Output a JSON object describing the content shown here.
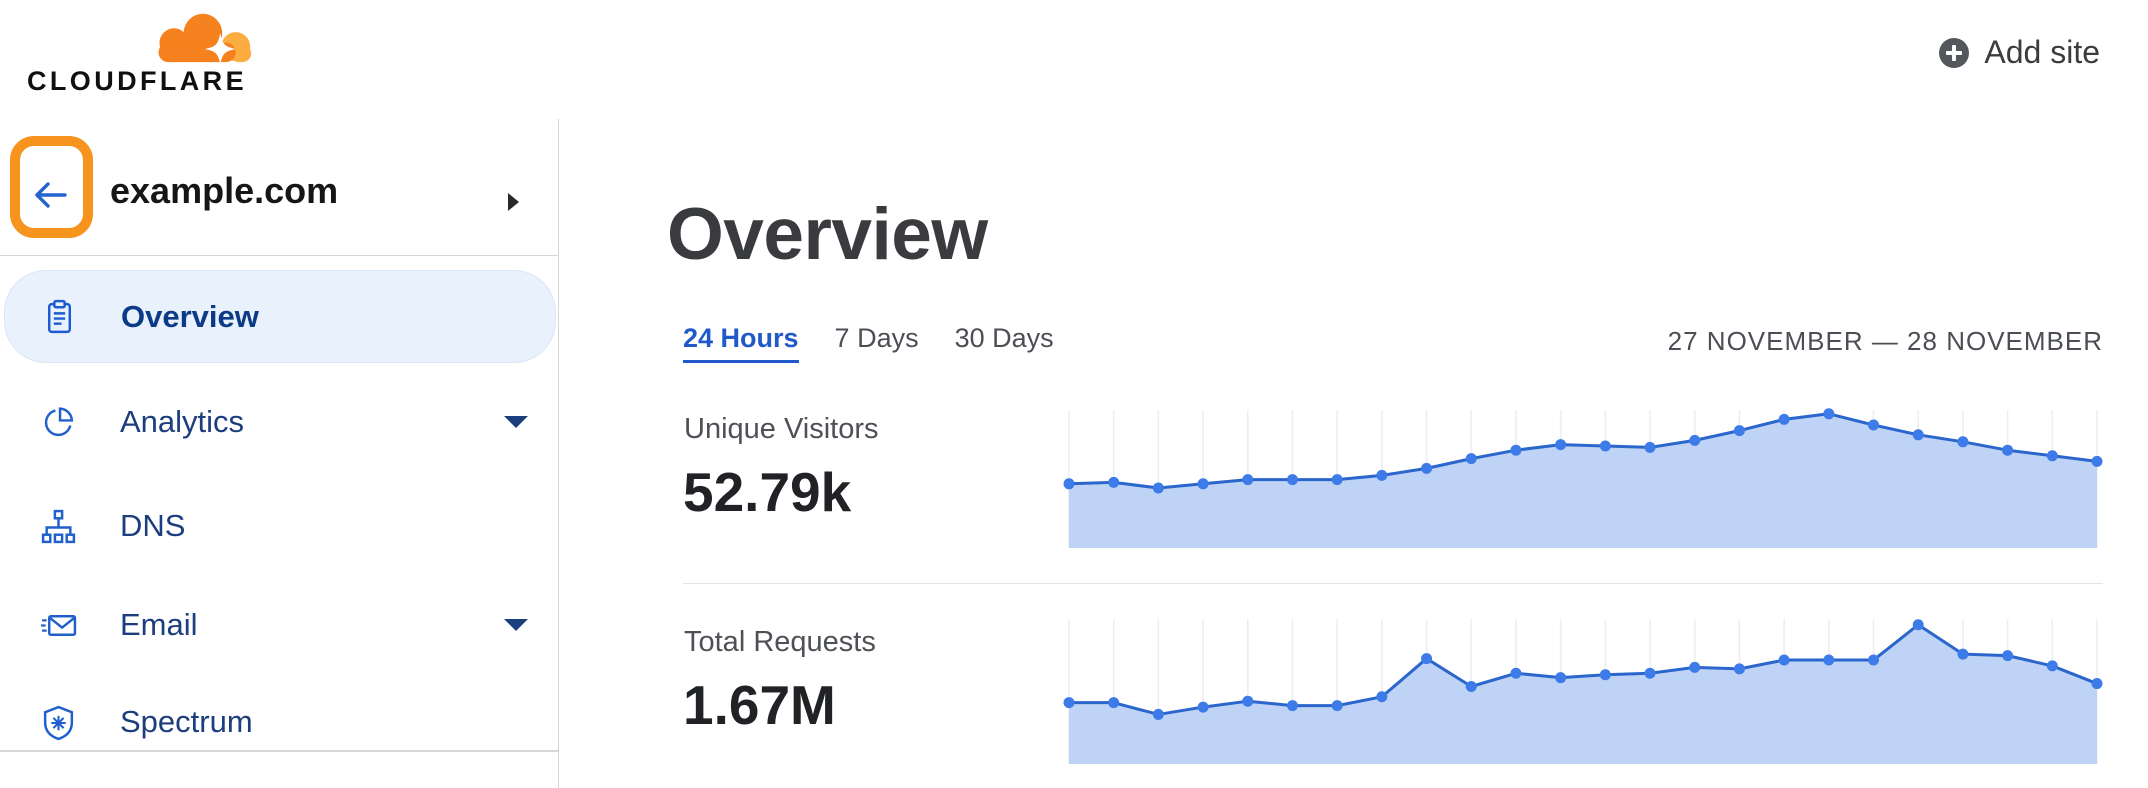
{
  "header": {
    "logo_text": "CLOUDFLARE",
    "add_site_label": "Add site"
  },
  "sidebar": {
    "site_name": "example.com",
    "items": [
      {
        "label": "Overview",
        "icon": "clipboard-icon",
        "active": true,
        "has_caret": false
      },
      {
        "label": "Analytics",
        "icon": "pie-chart-icon",
        "active": false,
        "has_caret": true
      },
      {
        "label": "DNS",
        "icon": "sitemap-icon",
        "active": false,
        "has_caret": false
      },
      {
        "label": "Email",
        "icon": "envelope-icon",
        "active": false,
        "has_caret": true
      },
      {
        "label": "Spectrum",
        "icon": "shield-icon",
        "active": false,
        "has_caret": false
      }
    ]
  },
  "main": {
    "title": "Overview",
    "tabs": [
      {
        "label": "24 Hours",
        "active": true
      },
      {
        "label": "7 Days",
        "active": false
      },
      {
        "label": "30 Days",
        "active": false
      }
    ],
    "date_range": "27 NOVEMBER — 28 NOVEMBER",
    "metrics": [
      {
        "label": "Unique Visitors",
        "value": "52.79k"
      },
      {
        "label": "Total Requests",
        "value": "1.67M"
      }
    ]
  },
  "chart_data": [
    {
      "type": "area",
      "title": "Unique Visitors sparkline",
      "period": "24 Hours",
      "x_unit": "hour",
      "summary_value": "52.79k",
      "values": [
        43,
        44,
        40,
        43,
        46,
        46,
        46,
        49,
        54,
        61,
        67,
        71,
        70,
        69,
        74,
        81,
        89,
        93,
        85,
        78,
        73,
        67,
        63,
        59
      ],
      "ylim": [
        0,
        100
      ],
      "grid": "vertical",
      "legend": "none"
    },
    {
      "type": "area",
      "title": "Total Requests sparkline",
      "period": "24 Hours",
      "x_unit": "hour",
      "summary_value": "1.67M",
      "values": [
        39,
        39,
        31,
        36,
        40,
        37,
        37,
        43,
        69,
        50,
        59,
        56,
        58,
        59,
        63,
        62,
        68,
        68,
        68,
        92,
        72,
        71,
        64,
        52
      ],
      "ylim": [
        0,
        100
      ],
      "grid": "vertical",
      "legend": "none"
    }
  ],
  "colors": {
    "brand_orange": "#f6821f",
    "brand_orange_light": "#fbad41",
    "annotation_orange": "#f7941d",
    "accent_blue": "#2059c9",
    "chart_line": "#2a66cc",
    "chart_dot": "#3d7ce8",
    "chart_fill": "#bed3f5",
    "chart_gridline": "#edeef2",
    "nav_text": "#1c3e7e"
  }
}
